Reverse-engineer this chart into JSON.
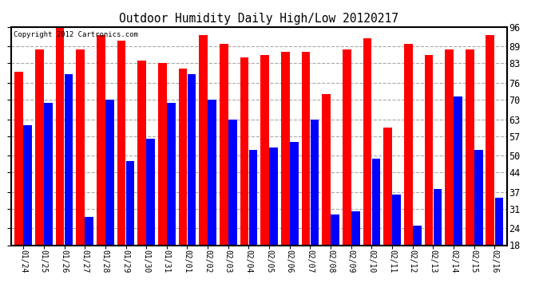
{
  "title": "Outdoor Humidity Daily High/Low 20120217",
  "copyright": "Copyright 2012 Cartronics.com",
  "dates": [
    "01/24",
    "01/25",
    "01/26",
    "01/27",
    "01/28",
    "01/29",
    "01/30",
    "01/31",
    "02/01",
    "02/02",
    "02/03",
    "02/04",
    "02/05",
    "02/06",
    "02/07",
    "02/08",
    "02/09",
    "02/10",
    "02/11",
    "02/12",
    "02/13",
    "02/14",
    "02/15",
    "02/16"
  ],
  "highs": [
    80,
    88,
    97,
    88,
    93,
    91,
    84,
    83,
    81,
    93,
    90,
    85,
    86,
    87,
    87,
    72,
    88,
    92,
    60,
    90,
    86,
    88,
    88,
    93
  ],
  "lows": [
    61,
    69,
    79,
    28,
    70,
    48,
    56,
    69,
    79,
    70,
    63,
    52,
    53,
    55,
    63,
    29,
    30,
    49,
    36,
    25,
    38,
    71,
    52,
    35
  ],
  "high_color": "#FF0000",
  "low_color": "#0000FF",
  "bg_color": "#FFFFFF",
  "grid_color": "#AAAAAA",
  "ymin": 18,
  "ymax": 96,
  "yticks": [
    18,
    24,
    31,
    37,
    44,
    50,
    57,
    63,
    70,
    76,
    83,
    89,
    96
  ]
}
